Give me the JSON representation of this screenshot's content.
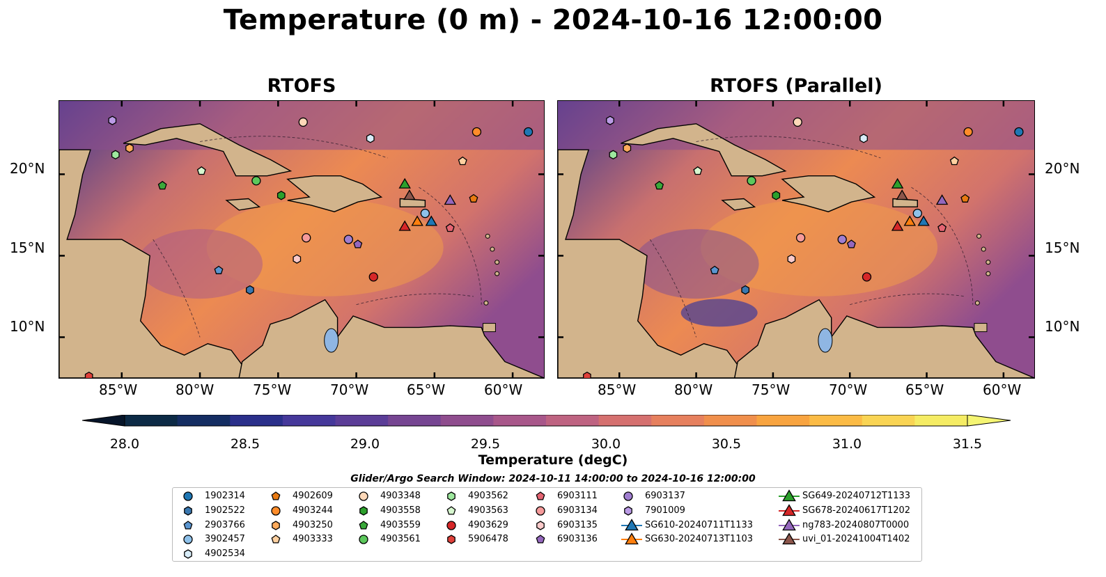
{
  "title": "Temperature (0 m) - 2024-10-16 12:00:00",
  "panels": [
    {
      "title": "RTOFS"
    },
    {
      "title": "RTOFS (Parallel)"
    }
  ],
  "axes": {
    "lon_labels": [
      "85°W",
      "80°W",
      "75°W",
      "70°W",
      "65°W",
      "60°W"
    ],
    "lat_labels": [
      "20°N",
      "15°N",
      "10°N"
    ],
    "lon_values": [
      -85,
      -80,
      -75,
      -70,
      -65,
      -60
    ],
    "lat_values": [
      20,
      15,
      10
    ],
    "extent": {
      "lon_min": -89,
      "lon_max": -58,
      "lat_min": 7.5,
      "lat_max": 24.5
    }
  },
  "colorbar": {
    "label": "Temperature (degC)",
    "ticks": [
      "28.0",
      "28.5",
      "29.0",
      "29.5",
      "30.0",
      "30.5",
      "31.0",
      "31.5"
    ],
    "min": 28.0,
    "max": 31.5,
    "colors": [
      "#0c2a45",
      "#142d62",
      "#2a2f8a",
      "#45389a",
      "#5b3d97",
      "#764592",
      "#8f4d8e",
      "#a8578a",
      "#be6381",
      "#d5706f",
      "#e6805e",
      "#f08f4c",
      "#f8a440",
      "#fbbb45",
      "#f9d454",
      "#f5ec64"
    ]
  },
  "legend": {
    "title": "Glider/Argo Search Window: 2024-10-11 14:00:00 to 2024-10-16 12:00:00",
    "columns": [
      [
        {
          "label": "1902314",
          "marker": "circle",
          "color": "#1f77b4"
        },
        {
          "label": "1902522",
          "marker": "hexagon",
          "color": "#3a78b0"
        },
        {
          "label": "2903766",
          "marker": "pentagon",
          "color": "#5a95d0"
        },
        {
          "label": "3902457",
          "marker": "circle",
          "color": "#8ec1ea"
        },
        {
          "label": "4902534",
          "marker": "hexagon",
          "color": "#d8ecf8"
        }
      ],
      [
        {
          "label": "4902609",
          "marker": "pentagon",
          "color": "#e87a12"
        },
        {
          "label": "4903244",
          "marker": "circle",
          "color": "#ff8c2a"
        },
        {
          "label": "4903250",
          "marker": "hexagon",
          "color": "#ffab5c"
        },
        {
          "label": "4903333",
          "marker": "pentagon",
          "color": "#ffd0a0"
        }
      ],
      [
        {
          "label": "4903348",
          "marker": "circle",
          "color": "#fdd8b8"
        },
        {
          "label": "4903558",
          "marker": "hexagon",
          "color": "#2ca02c"
        },
        {
          "label": "4903559",
          "marker": "pentagon",
          "color": "#3aa83a"
        },
        {
          "label": "4903561",
          "marker": "circle",
          "color": "#5cc85c"
        }
      ],
      [
        {
          "label": "4903562",
          "marker": "hexagon",
          "color": "#9ee89e"
        },
        {
          "label": "4903563",
          "marker": "pentagon",
          "color": "#d7f7cf"
        },
        {
          "label": "4903629",
          "marker": "circle",
          "color": "#d62728"
        },
        {
          "label": "5906478",
          "marker": "hexagon",
          "color": "#e0403a"
        }
      ],
      [
        {
          "label": "6903111",
          "marker": "pentagon",
          "color": "#e46472"
        },
        {
          "label": "6903134",
          "marker": "circle",
          "color": "#f59a9a"
        },
        {
          "label": "6903135",
          "marker": "hexagon",
          "color": "#fbcaca"
        },
        {
          "label": "6903136",
          "marker": "pentagon",
          "color": "#9467bd"
        }
      ],
      [
        {
          "label": "6903137",
          "marker": "circle",
          "color": "#a07ed0"
        },
        {
          "label": "7901009",
          "marker": "hexagon",
          "color": "#bb9be6"
        },
        {
          "label": "SG610-20240711T1133",
          "marker": "triangle",
          "color": "#1f77b4"
        },
        {
          "label": "SG630-20240713T1103",
          "marker": "triangle",
          "color": "#ff7f0e"
        }
      ],
      [
        {
          "label": "SG649-20240712T1133",
          "marker": "triangle",
          "color": "#2ca02c"
        },
        {
          "label": "SG678-20240617T1202",
          "marker": "triangle",
          "color": "#d62728"
        },
        {
          "label": "ng783-20240807T0000",
          "marker": "triangle",
          "color": "#9467bd"
        },
        {
          "label": "uvi_01-20241004T1402",
          "marker": "triangle",
          "color": "#8c564b"
        }
      ]
    ]
  },
  "markers": [
    {
      "id": "1902314",
      "lon": -59.0,
      "lat": 22.6,
      "marker": "circle",
      "color": "#1f77b4"
    },
    {
      "id": "1902522",
      "lon": -76.8,
      "lat": 12.9,
      "marker": "hexagon",
      "color": "#3a78b0"
    },
    {
      "id": "2903766",
      "lon": -78.8,
      "lat": 14.1,
      "marker": "pentagon",
      "color": "#5a95d0"
    },
    {
      "id": "3902457",
      "lon": -65.6,
      "lat": 17.6,
      "marker": "circle",
      "color": "#8ec1ea"
    },
    {
      "id": "4902534",
      "lon": -69.1,
      "lat": 22.2,
      "marker": "hexagon",
      "color": "#d8ecf8"
    },
    {
      "id": "4902609",
      "lon": -62.5,
      "lat": 18.5,
      "marker": "pentagon",
      "color": "#e87a12"
    },
    {
      "id": "4903244",
      "lon": -62.3,
      "lat": 22.6,
      "marker": "circle",
      "color": "#ff8c2a"
    },
    {
      "id": "4903250",
      "lon": -84.5,
      "lat": 21.6,
      "marker": "hexagon",
      "color": "#ffab5c"
    },
    {
      "id": "4903333",
      "lon": -63.2,
      "lat": 20.8,
      "marker": "pentagon",
      "color": "#ffd0a0"
    },
    {
      "id": "4903348",
      "lon": -73.4,
      "lat": 23.2,
      "marker": "circle",
      "color": "#fdd8b8"
    },
    {
      "id": "4903558",
      "lon": -74.8,
      "lat": 18.7,
      "marker": "hexagon",
      "color": "#2ca02c"
    },
    {
      "id": "4903559",
      "lon": -82.4,
      "lat": 19.3,
      "marker": "pentagon",
      "color": "#3aa83a"
    },
    {
      "id": "4903561",
      "lon": -76.4,
      "lat": 19.6,
      "marker": "circle",
      "color": "#5cc85c"
    },
    {
      "id": "4903562",
      "lon": -85.4,
      "lat": 21.2,
      "marker": "hexagon",
      "color": "#9ee89e"
    },
    {
      "id": "4903563",
      "lon": -79.9,
      "lat": 20.2,
      "marker": "pentagon",
      "color": "#d7f7cf"
    },
    {
      "id": "4903629",
      "lon": -68.9,
      "lat": 13.7,
      "marker": "circle",
      "color": "#d62728"
    },
    {
      "id": "5906478",
      "lon": -87.1,
      "lat": 7.6,
      "marker": "hexagon",
      "color": "#e0403a"
    },
    {
      "id": "6903111",
      "lon": -64.0,
      "lat": 16.7,
      "marker": "pentagon",
      "color": "#e46472"
    },
    {
      "id": "6903134",
      "lon": -73.2,
      "lat": 16.1,
      "marker": "circle",
      "color": "#f59a9a"
    },
    {
      "id": "6903135",
      "lon": -73.8,
      "lat": 14.8,
      "marker": "hexagon",
      "color": "#fbcaca"
    },
    {
      "id": "6903136",
      "lon": -69.9,
      "lat": 15.7,
      "marker": "pentagon",
      "color": "#9467bd"
    },
    {
      "id": "6903137",
      "lon": -70.5,
      "lat": 16.0,
      "marker": "circle",
      "color": "#a07ed0"
    },
    {
      "id": "7901009",
      "lon": -85.6,
      "lat": 23.3,
      "marker": "hexagon",
      "color": "#bb9be6"
    },
    {
      "id": "SG610-20240711T1133",
      "lon": -65.2,
      "lat": 17.1,
      "marker": "triangle",
      "color": "#1f77b4"
    },
    {
      "id": "SG630-20240713T1103",
      "lon": -66.1,
      "lat": 17.1,
      "marker": "triangle",
      "color": "#ff7f0e"
    },
    {
      "id": "SG649-20240712T1133",
      "lon": -66.9,
      "lat": 19.4,
      "marker": "triangle",
      "color": "#2ca02c"
    },
    {
      "id": "SG678-20240617T1202",
      "lon": -66.9,
      "lat": 16.8,
      "marker": "triangle",
      "color": "#d62728"
    },
    {
      "id": "ng783-20240807T0000",
      "lon": -64.0,
      "lat": 18.4,
      "marker": "triangle",
      "color": "#9467bd"
    },
    {
      "id": "uvi_01-20241004T1402",
      "lon": -66.6,
      "lat": 18.7,
      "marker": "triangle",
      "color": "#8c564b"
    }
  ],
  "land_color": "#d2b48c",
  "lake_color": "#8fb6e3"
}
